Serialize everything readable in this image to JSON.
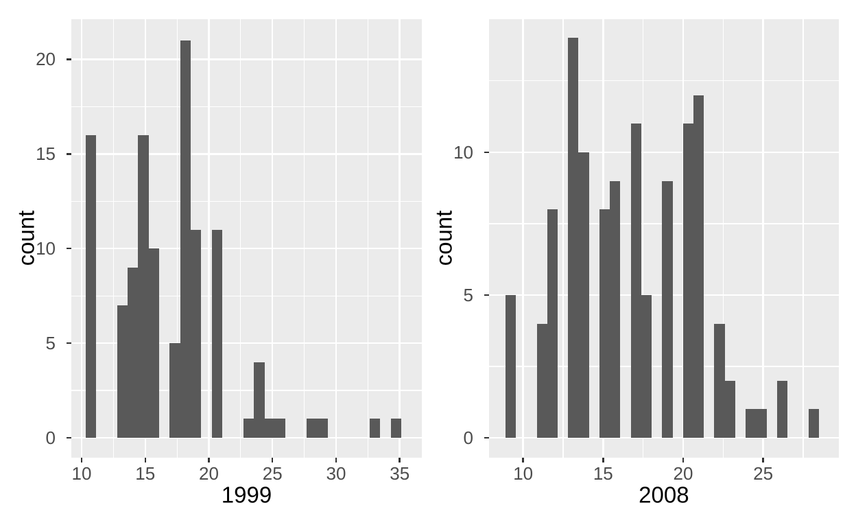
{
  "figure": {
    "background": "#FFFFFF",
    "panel_background": "#EBEBEB",
    "grid_color": "#FFFFFF",
    "bar_color": "#595959",
    "axis_tick_color": "#333333",
    "tick_label_color": "#4D4D4D",
    "axis_title_color": "#000000"
  },
  "chart_data": [
    {
      "type": "bar",
      "kind": "histogram",
      "title": "",
      "xlabel": "1999",
      "ylabel": "count",
      "xlim": [
        9.19,
        36.74
      ],
      "ylim": [
        -1.04,
        22.12
      ],
      "x_ticks": [
        10,
        15,
        20,
        25,
        30,
        35
      ],
      "x_minor_ticks": [
        12.5,
        17.5,
        22.5,
        27.5,
        32.5
      ],
      "y_ticks": [
        0,
        5,
        10,
        15,
        20
      ],
      "y_minor_ticks": [
        2.5,
        7.5,
        12.5,
        17.5
      ],
      "grid": "major-and-minor-white-on-grey",
      "legend": "none",
      "bars": [
        {
          "from": 10.3,
          "to": 11.13,
          "count": 16
        },
        {
          "from": 12.78,
          "to": 13.61,
          "count": 7
        },
        {
          "from": 13.61,
          "to": 14.44,
          "count": 9
        },
        {
          "from": 14.44,
          "to": 15.27,
          "count": 16
        },
        {
          "from": 15.27,
          "to": 16.09,
          "count": 10
        },
        {
          "from": 16.92,
          "to": 17.75,
          "count": 5
        },
        {
          "from": 17.75,
          "to": 18.58,
          "count": 21
        },
        {
          "from": 18.58,
          "to": 19.4,
          "count": 11
        },
        {
          "from": 20.23,
          "to": 21.06,
          "count": 11
        },
        {
          "from": 22.71,
          "to": 23.54,
          "count": 1
        },
        {
          "from": 23.54,
          "to": 24.37,
          "count": 4
        },
        {
          "from": 24.37,
          "to": 25.2,
          "count": 1
        },
        {
          "from": 25.2,
          "to": 26.02,
          "count": 1
        },
        {
          "from": 27.68,
          "to": 28.51,
          "count": 1
        },
        {
          "from": 28.51,
          "to": 29.33,
          "count": 1
        },
        {
          "from": 32.64,
          "to": 33.47,
          "count": 1
        },
        {
          "from": 34.3,
          "to": 35.13,
          "count": 1
        }
      ]
    },
    {
      "type": "bar",
      "kind": "histogram",
      "title": "",
      "xlabel": "2008",
      "ylabel": "count",
      "xlim": [
        7.87,
        29.72
      ],
      "ylim": [
        -0.69,
        14.66
      ],
      "x_ticks": [
        10,
        15,
        20,
        25
      ],
      "x_minor_ticks": [
        12.5,
        17.5,
        22.5,
        27.5
      ],
      "y_ticks": [
        0,
        5,
        10
      ],
      "y_minor_ticks": [
        2.5,
        7.5,
        12.5
      ],
      "grid": "major-and-minor-white-on-grey",
      "legend": "none",
      "bars": [
        {
          "from": 8.89,
          "to": 9.54,
          "count": 5
        },
        {
          "from": 10.85,
          "to": 11.5,
          "count": 4
        },
        {
          "from": 11.5,
          "to": 12.16,
          "count": 8
        },
        {
          "from": 12.81,
          "to": 13.46,
          "count": 14
        },
        {
          "from": 13.46,
          "to": 14.11,
          "count": 10
        },
        {
          "from": 14.77,
          "to": 15.42,
          "count": 8
        },
        {
          "from": 15.42,
          "to": 16.07,
          "count": 9
        },
        {
          "from": 16.73,
          "to": 17.38,
          "count": 11
        },
        {
          "from": 17.38,
          "to": 18.03,
          "count": 5
        },
        {
          "from": 18.69,
          "to": 19.34,
          "count": 9
        },
        {
          "from": 19.99,
          "to": 20.64,
          "count": 11
        },
        {
          "from": 20.64,
          "to": 21.3,
          "count": 12
        },
        {
          "from": 21.95,
          "to": 22.6,
          "count": 4
        },
        {
          "from": 22.6,
          "to": 23.26,
          "count": 2
        },
        {
          "from": 23.91,
          "to": 24.56,
          "count": 1
        },
        {
          "from": 24.56,
          "to": 25.22,
          "count": 1
        },
        {
          "from": 25.87,
          "to": 26.52,
          "count": 2
        },
        {
          "from": 27.83,
          "to": 28.48,
          "count": 1
        }
      ]
    }
  ]
}
